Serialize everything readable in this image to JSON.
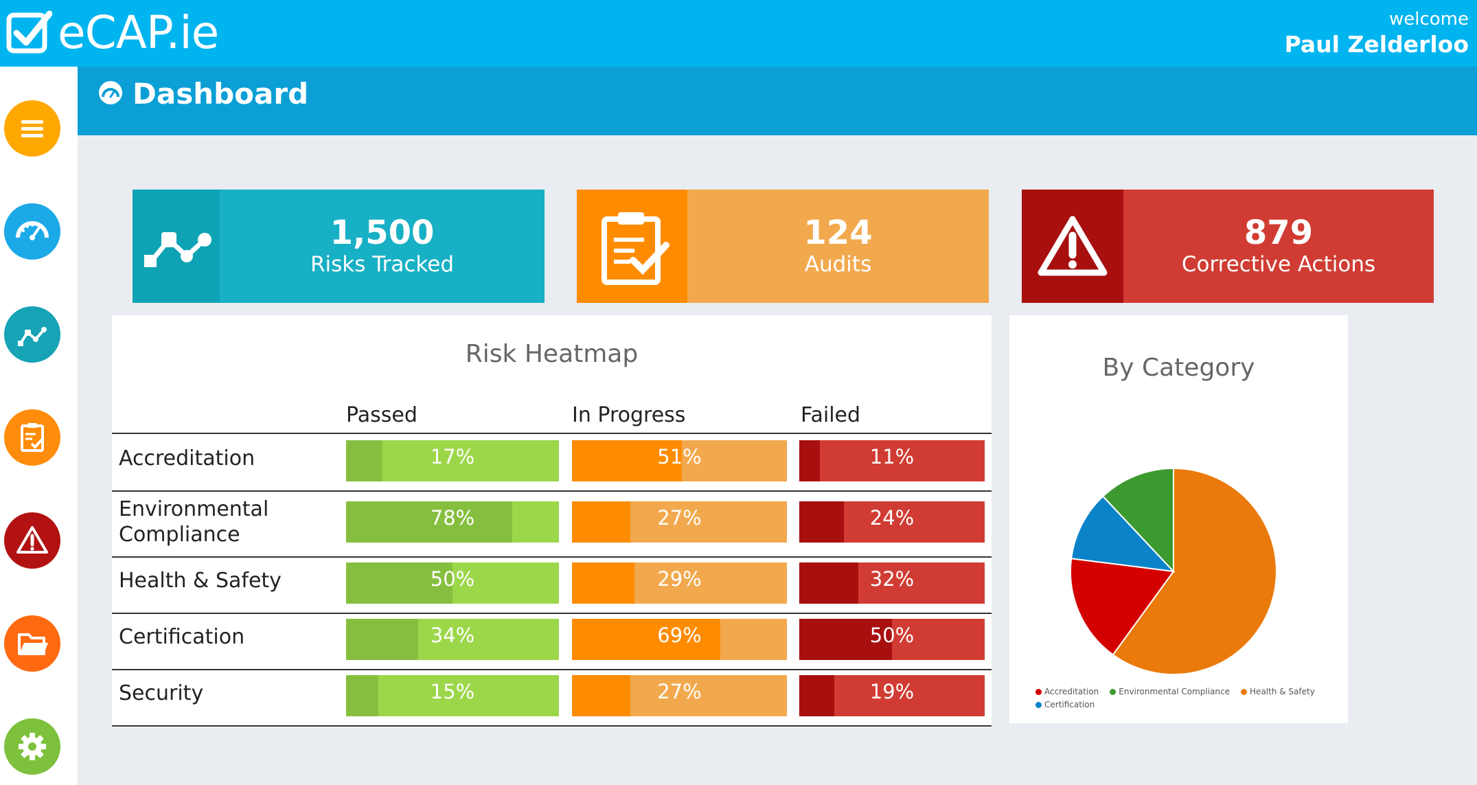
{
  "brand": {
    "name": "eCAP.ie"
  },
  "user": {
    "greeting": "welcome",
    "name": "Paul Zelderloo"
  },
  "page": {
    "title": "Dashboard"
  },
  "sidebar": {
    "items": [
      {
        "icon": "menu-icon",
        "color": "#ffa800"
      },
      {
        "icon": "dashboard-icon",
        "color": "#1ca9e8"
      },
      {
        "icon": "risks-icon",
        "color": "#15a3b5"
      },
      {
        "icon": "audits-icon",
        "color": "#ff8c0a"
      },
      {
        "icon": "warning-icon",
        "color": "#b21212"
      },
      {
        "icon": "folder-icon",
        "color": "#ff6a10"
      },
      {
        "icon": "settings-icon",
        "color": "#7dc13c"
      }
    ]
  },
  "kpis": [
    {
      "value": "1,500",
      "label": "Risks Tracked",
      "icon": "risks-icon",
      "icon_bg": "#0ea3b4",
      "bg": "#18b0c5"
    },
    {
      "value": "124",
      "label": "Audits",
      "icon": "clipboard-check-icon",
      "icon_bg": "#ff8c00",
      "bg": "#f2a94e"
    },
    {
      "value": "879",
      "label": "Corrective Actions",
      "icon": "warning-icon",
      "icon_bg": "#a80f0f",
      "bg": "#d03c33"
    }
  ],
  "heatmap": {
    "title": "Risk Heatmap",
    "columns": [
      "Passed",
      "In Progress",
      "Failed"
    ],
    "rows": [
      {
        "label": "Accreditation",
        "passed": 17,
        "in_progress": 51,
        "failed": 11
      },
      {
        "label": "Environmental Compliance",
        "passed": 78,
        "in_progress": 27,
        "failed": 24
      },
      {
        "label": "Health & Safety",
        "passed": 50,
        "in_progress": 29,
        "failed": 32
      },
      {
        "label": "Certification",
        "passed": 34,
        "in_progress": 69,
        "failed": 50
      },
      {
        "label": "Security",
        "passed": 15,
        "in_progress": 27,
        "failed": 19
      }
    ],
    "colors": {
      "passed": {
        "dark": "#86bf3f",
        "light": "#9cd74a"
      },
      "in_progress": {
        "dark": "#ff8c00",
        "light": "#f2a94e"
      },
      "failed": {
        "dark": "#a80f0f",
        "light": "#d03c33"
      }
    }
  },
  "chart_data": {
    "type": "pie",
    "title": "By Category",
    "categories": [
      "Accreditation",
      "Environmental Compliance",
      "Health & Safety",
      "Certification"
    ],
    "values": [
      17,
      12,
      60,
      11
    ],
    "colors": [
      "#d40000",
      "#3d9a31",
      "#ea7a0b",
      "#0a83c8"
    ],
    "legend": "bottom-left"
  }
}
